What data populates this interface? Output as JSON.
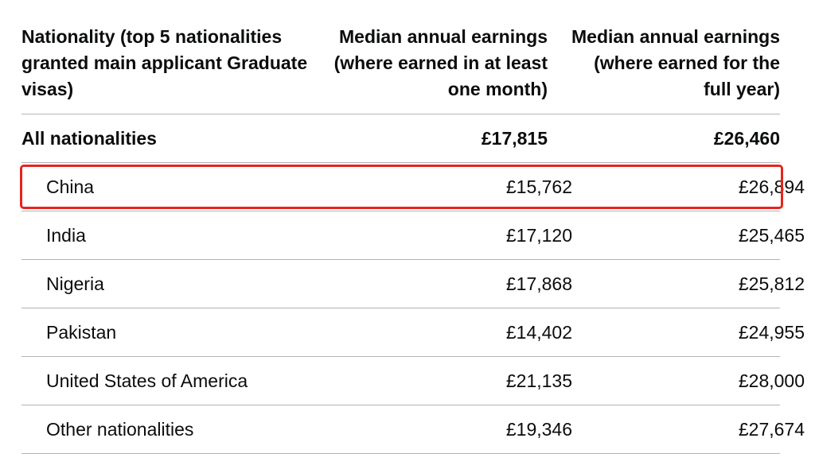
{
  "table": {
    "headers": {
      "nationality": "Nationality (top 5 nationalities granted main applicant Graduate visas)",
      "one_month": "Median annual earnings (where earned in at least one month)",
      "full_year": "Median annual earnings (where earned for the full year)"
    },
    "total": {
      "nationality": "All nationalities",
      "one_month": "£17,815",
      "full_year": "£26,460"
    },
    "rows": [
      {
        "nationality": "China",
        "one_month": "£15,762",
        "full_year": "£26,894",
        "highlighted": true
      },
      {
        "nationality": "India",
        "one_month": "£17,120",
        "full_year": "£25,465"
      },
      {
        "nationality": "Nigeria",
        "one_month": "£17,868",
        "full_year": "£25,812"
      },
      {
        "nationality": "Pakistan",
        "one_month": "£14,402",
        "full_year": "£24,955"
      },
      {
        "nationality": "United States of America",
        "one_month": "£21,135",
        "full_year": "£28,000"
      },
      {
        "nationality": "Other nationalities",
        "one_month": "£19,346",
        "full_year": "£27,674"
      }
    ]
  },
  "colors": {
    "highlight": "#e8231b",
    "text": "#0b0c0c",
    "divider": "#b1b4b6"
  }
}
